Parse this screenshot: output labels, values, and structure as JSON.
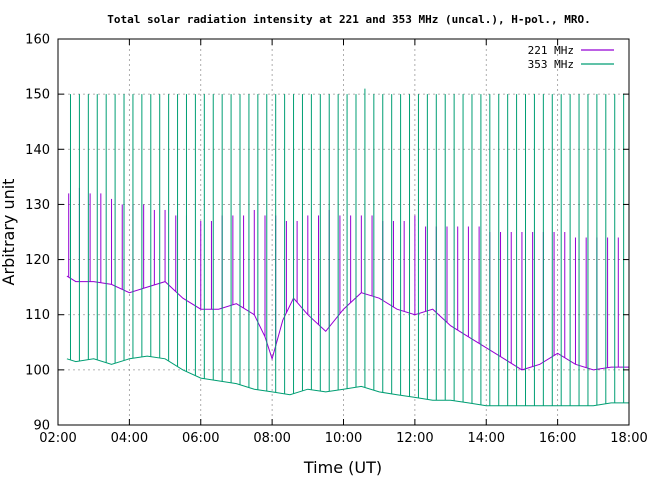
{
  "chart_data": {
    "type": "line",
    "title": "Total solar radiation intensity at 221 and 353 MHz (uncal.), H-pol., MRO.",
    "xlabel": "Time (UT)",
    "ylabel": "Arbitrary unit",
    "xlim": [
      2.0,
      18.0
    ],
    "ylim": [
      90,
      160
    ],
    "x_ticks": [
      2,
      4,
      6,
      8,
      10,
      12,
      14,
      16,
      18
    ],
    "x_tick_labels": [
      "02:00",
      "04:00",
      "06:00",
      "08:00",
      "10:00",
      "12:00",
      "14:00",
      "16:00",
      "18:00"
    ],
    "y_ticks": [
      90,
      100,
      110,
      120,
      130,
      140,
      150,
      160
    ],
    "y_tick_labels": [
      "90",
      "100",
      "110",
      "120",
      "130",
      "140",
      "150",
      "160"
    ],
    "grid": true,
    "legend_position": "top-right",
    "series": [
      {
        "name": "221 MHz",
        "color": "#9400d3",
        "baseline": {
          "x": [
            2.25,
            2.5,
            3.0,
            3.5,
            4.0,
            4.5,
            5.0,
            5.5,
            6.0,
            6.5,
            7.0,
            7.5,
            7.8,
            8.0,
            8.3,
            8.6,
            9.0,
            9.5,
            10.0,
            10.5,
            11.0,
            11.5,
            12.0,
            12.5,
            13.0,
            13.5,
            14.0,
            14.5,
            15.0,
            15.5,
            16.0,
            16.5,
            17.0,
            17.5,
            18.0
          ],
          "y": [
            117,
            116,
            116,
            115.5,
            114,
            115,
            116,
            113,
            111,
            111,
            112,
            110,
            106,
            102,
            109,
            113,
            110,
            107,
            111,
            114,
            113,
            111,
            110,
            111,
            108,
            106,
            104,
            102,
            100,
            101,
            103,
            101,
            100,
            100.5,
            100.5
          ]
        },
        "spikes": {
          "x": [
            2.3,
            2.6,
            2.9,
            3.2,
            3.5,
            3.8,
            4.1,
            4.4,
            4.7,
            5.0,
            5.3,
            5.6,
            6.0,
            6.3,
            6.6,
            6.9,
            7.2,
            7.5,
            7.8,
            8.1,
            8.4,
            8.7,
            9.0,
            9.3,
            9.6,
            9.9,
            10.2,
            10.5,
            10.8,
            11.1,
            11.4,
            11.7,
            12.0,
            12.3,
            12.6,
            12.9,
            13.2,
            13.5,
            13.8,
            14.1,
            14.4,
            14.7,
            15.0,
            15.3,
            15.6,
            15.9,
            16.2,
            16.5,
            16.8,
            17.1,
            17.4,
            17.7
          ],
          "y": [
            132,
            133,
            132,
            132,
            131,
            130,
            130,
            130,
            129,
            129,
            128,
            128,
            127,
            127,
            128,
            128,
            128,
            129,
            128,
            128,
            127,
            127,
            128,
            128,
            129,
            128,
            128,
            128,
            128,
            127,
            127,
            127,
            128,
            126,
            126,
            126,
            126,
            126,
            126,
            125,
            125,
            125,
            125,
            125,
            125,
            125,
            125,
            124,
            124,
            124,
            124,
            124
          ]
        }
      },
      {
        "name": "353 MHz",
        "color": "#009e73",
        "baseline": {
          "x": [
            2.25,
            2.5,
            3.0,
            3.5,
            4.0,
            4.5,
            5.0,
            5.5,
            6.0,
            6.5,
            7.0,
            7.5,
            8.0,
            8.5,
            9.0,
            9.5,
            10.0,
            10.5,
            11.0,
            11.5,
            12.0,
            12.5,
            13.0,
            13.5,
            14.0,
            14.5,
            15.0,
            15.5,
            16.0,
            16.5,
            17.0,
            17.5,
            18.0
          ],
          "y": [
            102,
            101.5,
            102,
            101,
            102,
            102.5,
            102,
            100,
            98.5,
            98,
            97.5,
            96.5,
            96,
            95.5,
            96.5,
            96,
            96.5,
            97,
            96,
            95.5,
            95,
            94.5,
            94.5,
            94,
            93.5,
            93.5,
            93.5,
            93.5,
            93.5,
            93.5,
            93.5,
            94,
            94
          ]
        },
        "spikes": {
          "x": [
            2.35,
            2.6,
            2.85,
            3.1,
            3.35,
            3.6,
            3.85,
            4.1,
            4.35,
            4.6,
            4.85,
            5.1,
            5.35,
            5.6,
            5.85,
            6.1,
            6.35,
            6.6,
            6.85,
            7.1,
            7.35,
            7.6,
            7.85,
            8.1,
            8.35,
            8.6,
            8.85,
            9.1,
            9.35,
            9.6,
            9.85,
            10.1,
            10.35,
            10.6,
            10.85,
            11.1,
            11.35,
            11.6,
            11.85,
            12.1,
            12.35,
            12.6,
            12.85,
            13.1,
            13.35,
            13.6,
            13.85,
            14.1,
            14.35,
            14.6,
            14.85,
            15.1,
            15.35,
            15.6,
            15.85,
            16.1,
            16.35,
            16.6,
            16.85,
            17.1,
            17.35,
            17.6,
            17.85
          ],
          "y": [
            150,
            150,
            150,
            150,
            150,
            150,
            150,
            150,
            150,
            150,
            150,
            150,
            150,
            150,
            150,
            150,
            150,
            150,
            150,
            150,
            150,
            150,
            150,
            150,
            150,
            150,
            150,
            150,
            150,
            150,
            150,
            150,
            150,
            151,
            150,
            150,
            150,
            150,
            150,
            150,
            150,
            150,
            150,
            150,
            150,
            150,
            150,
            150,
            150,
            150,
            150,
            150,
            150,
            150,
            150,
            150,
            150,
            150,
            150,
            150,
            150,
            150,
            150
          ]
        }
      }
    ]
  }
}
